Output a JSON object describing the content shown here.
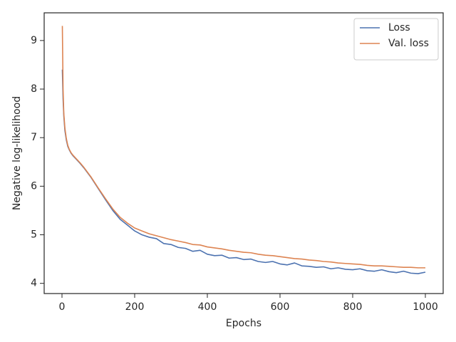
{
  "chart_data": {
    "type": "line",
    "xlabel": "Epochs",
    "ylabel": "Negative log-likelihood",
    "x": [
      1,
      3,
      5,
      8,
      12,
      16,
      20,
      25,
      30,
      40,
      50,
      60,
      80,
      100,
      120,
      140,
      160,
      180,
      200,
      220,
      240,
      260,
      280,
      300,
      320,
      340,
      360,
      380,
      400,
      420,
      440,
      460,
      480,
      500,
      520,
      540,
      560,
      580,
      600,
      620,
      640,
      660,
      680,
      700,
      720,
      740,
      760,
      780,
      800,
      820,
      840,
      860,
      880,
      900,
      920,
      940,
      960,
      980,
      1000
    ],
    "series": [
      {
        "name": "Loss",
        "color": "#4c72b0",
        "values": [
          8.4,
          7.8,
          7.45,
          7.15,
          6.95,
          6.82,
          6.75,
          6.68,
          6.63,
          6.55,
          6.47,
          6.38,
          6.18,
          5.95,
          5.72,
          5.5,
          5.32,
          5.2,
          5.08,
          5.0,
          4.95,
          4.92,
          4.82,
          4.8,
          4.74,
          4.72,
          4.66,
          4.68,
          4.6,
          4.57,
          4.58,
          4.52,
          4.53,
          4.49,
          4.5,
          4.45,
          4.43,
          4.45,
          4.4,
          4.38,
          4.42,
          4.36,
          4.35,
          4.33,
          4.34,
          4.3,
          4.32,
          4.29,
          4.28,
          4.3,
          4.26,
          4.25,
          4.28,
          4.24,
          4.22,
          4.25,
          4.21,
          4.2,
          4.23
        ]
      },
      {
        "name": "Val. loss",
        "color": "#dd8452",
        "values": [
          9.3,
          8.0,
          7.5,
          7.2,
          6.98,
          6.84,
          6.76,
          6.69,
          6.64,
          6.56,
          6.48,
          6.39,
          6.19,
          5.96,
          5.74,
          5.53,
          5.36,
          5.24,
          5.14,
          5.08,
          5.02,
          4.98,
          4.94,
          4.9,
          4.87,
          4.84,
          4.8,
          4.79,
          4.75,
          4.73,
          4.71,
          4.68,
          4.66,
          4.64,
          4.63,
          4.6,
          4.58,
          4.57,
          4.55,
          4.53,
          4.51,
          4.5,
          4.48,
          4.47,
          4.45,
          4.44,
          4.42,
          4.41,
          4.4,
          4.39,
          4.37,
          4.36,
          4.36,
          4.35,
          4.34,
          4.33,
          4.33,
          4.32,
          4.32
        ]
      }
    ],
    "xlim": [
      -49,
      1049
    ],
    "ylim": [
      3.79,
      9.57
    ],
    "xticks": [
      0,
      200,
      400,
      600,
      800,
      1000
    ],
    "yticks": [
      4,
      5,
      6,
      7,
      8,
      9
    ],
    "grid": false,
    "legend": "upper right"
  }
}
